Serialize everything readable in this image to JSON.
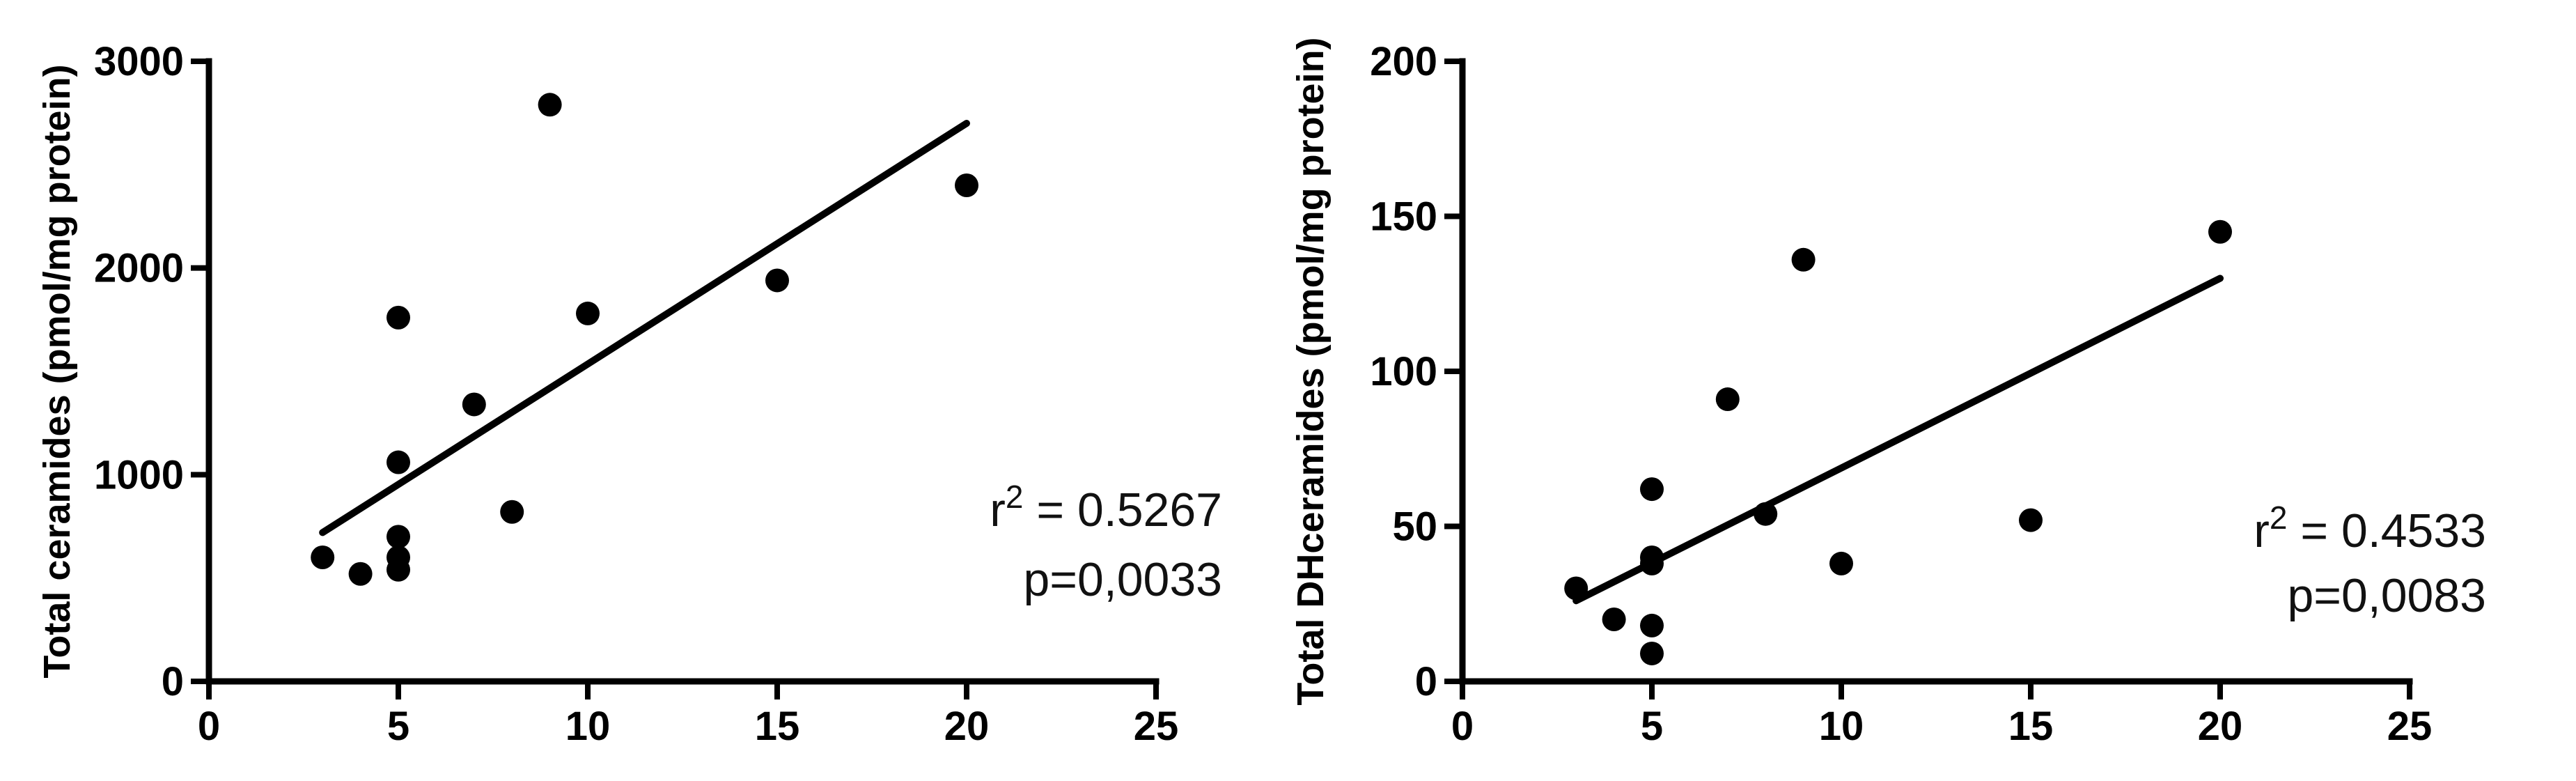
{
  "chart_data": [
    {
      "type": "scatter",
      "ylabel": "Total ceramides (pmol/mg protein)",
      "xlabel": "",
      "xlim": [
        0,
        25
      ],
      "ylim": [
        0,
        3000
      ],
      "xticks": [
        "0",
        "5",
        "10",
        "15",
        "20",
        "25"
      ],
      "yticks": [
        "0",
        "1000",
        "2000",
        "3000"
      ],
      "points": [
        {
          "x": 3,
          "y": 600
        },
        {
          "x": 4,
          "y": 520
        },
        {
          "x": 5,
          "y": 1760
        },
        {
          "x": 5,
          "y": 1060
        },
        {
          "x": 5,
          "y": 700
        },
        {
          "x": 5,
          "y": 600
        },
        {
          "x": 5,
          "y": 540
        },
        {
          "x": 7,
          "y": 1340
        },
        {
          "x": 8,
          "y": 820
        },
        {
          "x": 9,
          "y": 2790
        },
        {
          "x": 10,
          "y": 1780
        },
        {
          "x": 15,
          "y": 1940
        },
        {
          "x": 20,
          "y": 2400
        }
      ],
      "fit_line": {
        "x": [
          3,
          20
        ],
        "y": [
          720,
          2700
        ]
      },
      "annotation": {
        "r_prefix": "r",
        "r_exp": "2",
        "r_value": " = 0.5267",
        "p_text": "p=0,0033"
      }
    },
    {
      "type": "scatter",
      "ylabel": "Total DHceramides (pmol/mg protein)",
      "xlabel": "",
      "xlim": [
        0,
        25
      ],
      "ylim": [
        0,
        200
      ],
      "xticks": [
        "0",
        "5",
        "10",
        "15",
        "20",
        "25"
      ],
      "yticks": [
        "0",
        "50",
        "100",
        "150",
        "200"
      ],
      "points": [
        {
          "x": 3,
          "y": 30
        },
        {
          "x": 4,
          "y": 20
        },
        {
          "x": 5,
          "y": 62
        },
        {
          "x": 5,
          "y": 40
        },
        {
          "x": 5,
          "y": 38
        },
        {
          "x": 5,
          "y": 18
        },
        {
          "x": 5,
          "y": 9
        },
        {
          "x": 7,
          "y": 91
        },
        {
          "x": 8,
          "y": 54
        },
        {
          "x": 9,
          "y": 136
        },
        {
          "x": 10,
          "y": 38
        },
        {
          "x": 15,
          "y": 52
        },
        {
          "x": 20,
          "y": 145
        }
      ],
      "fit_line": {
        "x": [
          3,
          20
        ],
        "y": [
          26,
          130
        ]
      },
      "annotation": {
        "r_prefix": "r",
        "r_exp": "2",
        "r_value": " = 0.4533",
        "p_text": "p=0,0083"
      }
    }
  ]
}
